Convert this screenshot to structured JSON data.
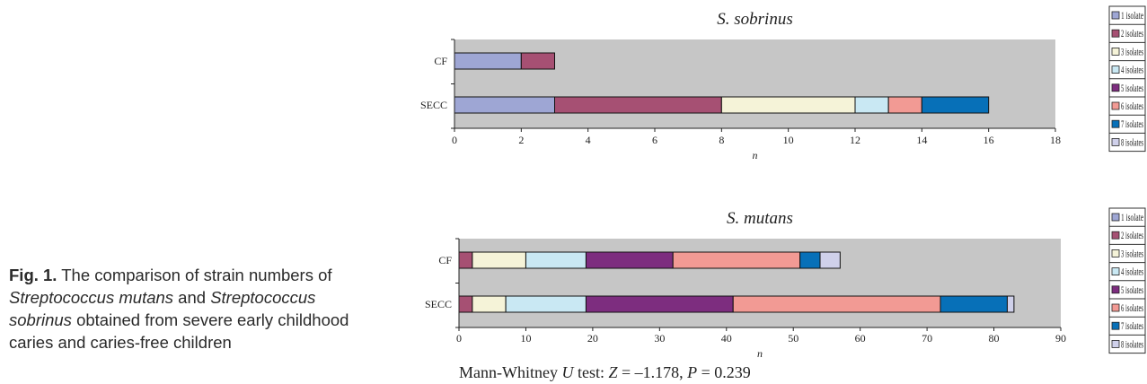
{
  "caption": {
    "label": "Fig. 1.",
    "part1": " The  comparison of strain numbers of ",
    "species1": "Streptococcus mutans",
    "part2": " and ",
    "species2": "Streptococcus sobrinus",
    "part3": " obtained from severe early childhood caries and caries-free children"
  },
  "statistic": {
    "prefix": "Mann-Whitney ",
    "U": "U",
    "test": " test: ",
    "Z": "Z",
    "z_value": " = –1.178, ",
    "P": "P",
    "p_value": " = 0.239"
  },
  "colors": {
    "plot_background": "#c6c6c6",
    "segments": [
      "#9ea6d4",
      "#a65073",
      "#f5f3d8",
      "#c9e8f3",
      "#7d2d7f",
      "#f29a94",
      "#0770b8",
      "#cfd0ea"
    ]
  },
  "chart_data": [
    {
      "type": "bar",
      "orientation": "horizontal",
      "stacked": true,
      "title": "S. sobrinus",
      "xlabel": "n",
      "ylabel": "",
      "xlim": [
        0,
        18
      ],
      "xticks": [
        0,
        2,
        4,
        6,
        8,
        10,
        12,
        14,
        16,
        18
      ],
      "categories": [
        "CF",
        "SECC"
      ],
      "series": [
        {
          "name": "1 isolate",
          "values": [
            2,
            3
          ]
        },
        {
          "name": "2 isolates",
          "values": [
            1,
            5
          ]
        },
        {
          "name": "3 isolates",
          "values": [
            0,
            4
          ]
        },
        {
          "name": "4 isolates",
          "values": [
            0,
            1
          ]
        },
        {
          "name": "5 isolates",
          "values": [
            0,
            0
          ]
        },
        {
          "name": "6 isolates",
          "values": [
            0,
            1
          ]
        },
        {
          "name": "7 isolates",
          "values": [
            0,
            2
          ]
        },
        {
          "name": "8 isolates",
          "values": [
            0,
            0
          ]
        }
      ],
      "grid": false,
      "legend_position": "right"
    },
    {
      "type": "bar",
      "orientation": "horizontal",
      "stacked": true,
      "title": "S. mutans",
      "xlabel": "n",
      "ylabel": "",
      "xlim": [
        0,
        90
      ],
      "xticks": [
        0,
        10,
        20,
        30,
        40,
        50,
        60,
        70,
        80,
        90
      ],
      "categories": [
        "CF",
        "SECC"
      ],
      "series": [
        {
          "name": "1 isolate",
          "values": [
            0,
            0
          ]
        },
        {
          "name": "2 isolates",
          "values": [
            2,
            2
          ]
        },
        {
          "name": "3 isolates",
          "values": [
            8,
            5
          ]
        },
        {
          "name": "4 isolates",
          "values": [
            9,
            12
          ]
        },
        {
          "name": "5 isolates",
          "values": [
            13,
            22
          ]
        },
        {
          "name": "6 isolates",
          "values": [
            19,
            31
          ]
        },
        {
          "name": "7 isolates",
          "values": [
            3,
            10
          ]
        },
        {
          "name": "8 isolates",
          "values": [
            3,
            1
          ]
        }
      ],
      "grid": false,
      "legend_position": "right"
    }
  ]
}
